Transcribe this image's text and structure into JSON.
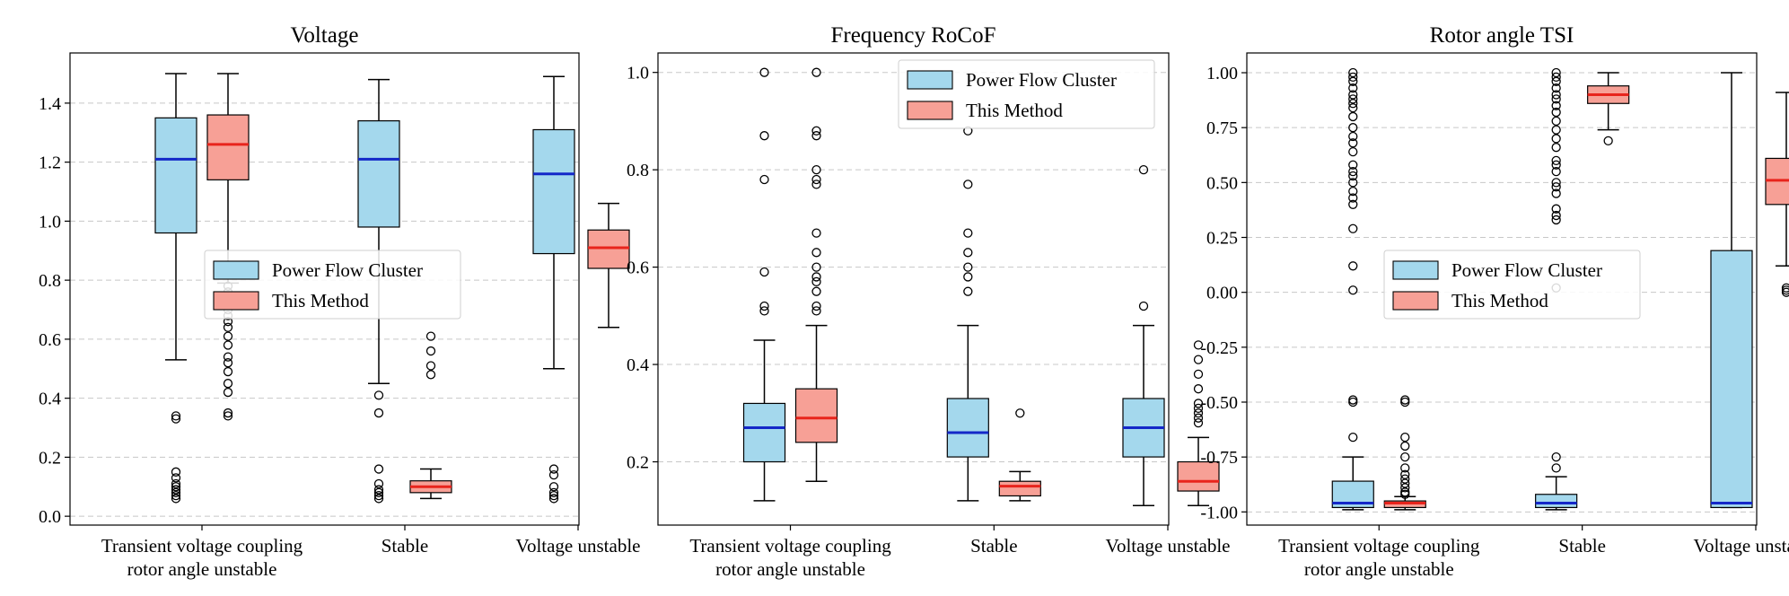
{
  "chart_data": [
    {
      "type": "box",
      "title": "Voltage",
      "categories": [
        "Transient voltage  coupling\nrotor angle unstable",
        "Stable",
        "Voltage unstable"
      ],
      "ylim": [
        -0.03,
        1.57
      ],
      "yticks": [
        0.0,
        0.2,
        0.4,
        0.6,
        0.8,
        1.0,
        1.2,
        1.4
      ],
      "ytick_labels": [
        "0.0",
        "0.2",
        "0.4",
        "0.6",
        "0.8",
        "1.0",
        "1.2",
        "1.4"
      ],
      "grid": "horizontal dashed",
      "legend": {
        "placement": "center",
        "entries": [
          "Power Flow Cluster",
          "This Method"
        ]
      },
      "series": [
        {
          "name": "Power Flow Cluster",
          "color": "#a4d8ed",
          "median_color": "#1428c8",
          "boxes": [
            {
              "whislo": 0.53,
              "q1": 0.96,
              "med": 1.21,
              "q3": 1.35,
              "whishi": 1.5,
              "fliers": [
                0.34,
                0.33,
                0.15,
                0.13,
                0.11,
                0.1,
                0.09,
                0.08,
                0.07,
                0.06
              ]
            },
            {
              "whislo": 0.45,
              "q1": 0.98,
              "med": 1.21,
              "q3": 1.34,
              "whishi": 1.48,
              "fliers": [
                0.41,
                0.35,
                0.16,
                0.11,
                0.09,
                0.08,
                0.07,
                0.06
              ]
            },
            {
              "whislo": 0.5,
              "q1": 0.89,
              "med": 1.16,
              "q3": 1.31,
              "whishi": 1.49,
              "fliers": [
                0.16,
                0.14,
                0.1,
                0.08,
                0.07,
                0.06
              ]
            }
          ]
        },
        {
          "name": "This Method",
          "color": "#f7a096",
          "median_color": "#e8241c",
          "boxes": [
            {
              "whislo": 0.79,
              "q1": 1.14,
              "med": 1.26,
              "q3": 1.36,
              "whishi": 1.5,
              "fliers": [
                0.78,
                0.76,
                0.74,
                0.72,
                0.7,
                0.68,
                0.66,
                0.64,
                0.61,
                0.58,
                0.54,
                0.52,
                0.49,
                0.45,
                0.42,
                0.35,
                0.34
              ]
            },
            {
              "whislo": 0.06,
              "q1": 0.08,
              "med": 0.1,
              "q3": 0.12,
              "whishi": 0.16,
              "fliers": [
                0.61,
                0.56,
                0.51,
                0.48
              ]
            },
            {
              "whislo": 0.64,
              "q1": 0.84,
              "med": 0.91,
              "q3": 0.97,
              "whishi": 1.06,
              "fliers": []
            }
          ]
        }
      ]
    },
    {
      "type": "box",
      "title": "Frequency RoCoF",
      "categories": [
        "Transient voltage  coupling\nrotor angle unstable",
        "Stable",
        "Voltage unstable"
      ],
      "ylim": [
        0.07,
        1.04
      ],
      "yticks": [
        0.2,
        0.4,
        0.6,
        0.8,
        1.0
      ],
      "ytick_labels": [
        "0.2",
        "0.4",
        "0.6",
        "0.8",
        "1.0"
      ],
      "grid": "horizontal dashed",
      "legend": {
        "placement": "top-right",
        "entries": [
          "Power Flow Cluster",
          "This Method"
        ]
      },
      "series": [
        {
          "name": "Power Flow Cluster",
          "color": "#a4d8ed",
          "median_color": "#1428c8",
          "boxes": [
            {
              "whislo": 0.12,
              "q1": 0.2,
              "med": 0.27,
              "q3": 0.32,
              "whishi": 0.45,
              "fliers": [
                1.0,
                0.87,
                0.78,
                0.59,
                0.52,
                0.51
              ]
            },
            {
              "whislo": 0.12,
              "q1": 0.21,
              "med": 0.26,
              "q3": 0.33,
              "whishi": 0.48,
              "fliers": [
                0.88,
                0.77,
                0.67,
                0.63,
                0.6,
                0.58,
                0.55
              ]
            },
            {
              "whislo": 0.11,
              "q1": 0.21,
              "med": 0.27,
              "q3": 0.33,
              "whishi": 0.48,
              "fliers": [
                0.8,
                0.52
              ]
            }
          ]
        },
        {
          "name": "This Method",
          "color": "#f7a096",
          "median_color": "#e8241c",
          "boxes": [
            {
              "whislo": 0.16,
              "q1": 0.24,
              "med": 0.29,
              "q3": 0.35,
              "whishi": 0.48,
              "fliers": [
                1.0,
                0.88,
                0.87,
                0.8,
                0.78,
                0.77,
                0.67,
                0.63,
                0.6,
                0.58,
                0.57,
                0.55,
                0.52,
                0.51
              ]
            },
            {
              "whislo": 0.12,
              "q1": 0.13,
              "med": 0.15,
              "q3": 0.16,
              "whishi": 0.18,
              "fliers": [
                0.3
              ]
            },
            {
              "whislo": 0.11,
              "q1": 0.14,
              "med": 0.16,
              "q3": 0.2,
              "whishi": 0.25,
              "fliers": [
                0.44,
                0.41,
                0.38,
                0.35,
                0.32,
                0.31,
                0.3,
                0.29,
                0.28
              ]
            }
          ]
        }
      ]
    },
    {
      "type": "box",
      "title": "Rotor angle TSI",
      "categories": [
        "Transient voltage  coupling\nrotor angle unstable",
        "Stable",
        "Voltage unstable"
      ],
      "ylim": [
        -1.06,
        1.09
      ],
      "yticks": [
        -1.0,
        -0.75,
        -0.5,
        -0.25,
        0.0,
        0.25,
        0.5,
        0.75,
        1.0
      ],
      "ytick_labels": [
        "-1.00",
        "-0.75",
        "-0.50",
        "-0.25",
        "0.00",
        "0.25",
        "0.50",
        "0.75",
        "1.00"
      ],
      "grid": "horizontal dashed",
      "legend": {
        "placement": "center",
        "entries": [
          "Power Flow Cluster",
          "This Method"
        ]
      },
      "series": [
        {
          "name": "Power Flow Cluster",
          "color": "#a4d8ed",
          "median_color": "#1428c8",
          "boxes": [
            {
              "whislo": -0.99,
              "q1": -0.98,
              "med": -0.96,
              "q3": -0.86,
              "whishi": -0.75,
              "fliers": [
                -0.66,
                -0.5,
                -0.49,
                0.01,
                0.12,
                0.29,
                0.4,
                0.43,
                0.46,
                0.5,
                0.53,
                0.55,
                0.58,
                0.64,
                0.68,
                0.71,
                0.75,
                0.8,
                0.84,
                0.86,
                0.88,
                0.9,
                0.93,
                0.96,
                0.98,
                1.0
              ]
            },
            {
              "whislo": -0.99,
              "q1": -0.98,
              "med": -0.96,
              "q3": -0.92,
              "whishi": -0.84,
              "fliers": [
                -0.8,
                -0.75,
                0.02,
                0.33,
                0.35,
                0.38,
                0.45,
                0.48,
                0.5,
                0.55,
                0.58,
                0.6,
                0.66,
                0.7,
                0.74,
                0.78,
                0.82,
                0.85,
                0.88,
                0.9,
                0.93,
                0.96,
                0.98,
                1.0
              ]
            },
            {
              "whislo": -0.98,
              "q1": -0.98,
              "med": -0.96,
              "q3": 0.19,
              "whishi": 1.0,
              "fliers": []
            }
          ]
        },
        {
          "name": "This Method",
          "color": "#f7a096",
          "median_color": "#e8241c",
          "boxes": [
            {
              "whislo": -0.99,
              "q1": -0.98,
              "med": -0.96,
              "q3": -0.95,
              "whishi": -0.93,
              "fliers": [
                -0.92,
                -0.91,
                -0.89,
                -0.87,
                -0.85,
                -0.83,
                -0.8,
                -0.75,
                -0.7,
                -0.66,
                -0.5,
                -0.49
              ]
            },
            {
              "whislo": 0.74,
              "q1": 0.86,
              "med": 0.9,
              "q3": 0.94,
              "whishi": 1.0,
              "fliers": [
                0.69
              ]
            },
            {
              "whislo": 0.12,
              "q1": 0.4,
              "med": 0.51,
              "q3": 0.61,
              "whishi": 0.91,
              "fliers": [
                0.02,
                0.01,
                0.0
              ]
            }
          ]
        }
      ]
    }
  ]
}
